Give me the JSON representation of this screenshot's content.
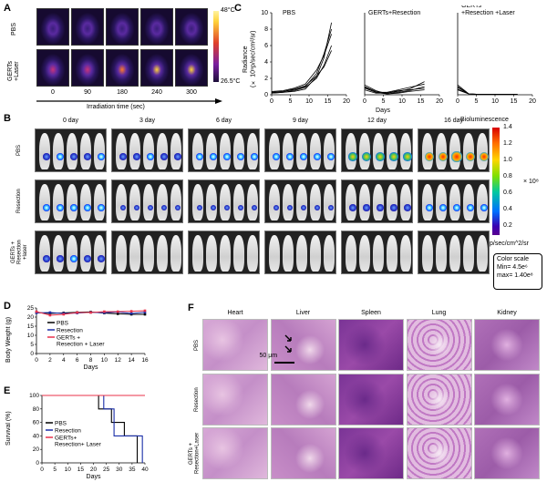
{
  "panelA": {
    "label": "A",
    "rows": [
      "PBS",
      "GERTs\n+Laser"
    ],
    "times": [
      "0",
      "90",
      "180",
      "240",
      "300"
    ],
    "xlabel": "Irradiation time (sec)",
    "scale_max": "48°C",
    "scale_min": "26.5°C",
    "colors": [
      "#1c0f3a",
      "#7a1fa0",
      "#e0402a",
      "#ffd23a"
    ]
  },
  "panelB": {
    "label": "B",
    "days": [
      "0 day",
      "3 day",
      "6 day",
      "9 day",
      "12 day",
      "16 day"
    ],
    "rows": [
      "PBS",
      "Resection",
      "GERTs +\nResection\n+laser"
    ],
    "colorbar_title": "Bioluminescence",
    "colorbar_ticks": [
      "1.4",
      "1.2",
      "1.0",
      "0.8",
      "0.6",
      "0.4",
      "0.2"
    ],
    "colorbar_exp": "× 10⁸",
    "colorbar_unit": "p/sec/cm^2/sr",
    "scale_box": [
      "Color scale",
      "Min= 4.5e⁶",
      "max= 1.40e⁸"
    ]
  },
  "panelC": {
    "label": "C",
    "ylabel": "Radiance\n(× 10⁹p/sec/cm²/sr)",
    "xlabel": "Days",
    "subtitles": [
      "PBS",
      "GERTs+Resection",
      "GERTs\n+Resection +Laser"
    ],
    "yticks": [
      "10",
      "8",
      "6",
      "4",
      "2",
      "0"
    ],
    "xticks": [
      "0",
      "5",
      "10",
      "15",
      "20"
    ]
  },
  "panelD": {
    "label": "D",
    "ylabel": "Body Weight (g)",
    "xlabel": "Days",
    "yticks": [
      "25",
      "20",
      "15",
      "10",
      "5",
      "0"
    ],
    "xticks": [
      "0",
      "2",
      "4",
      "6",
      "8",
      "10",
      "12",
      "14",
      "16"
    ],
    "legend": [
      "PBS",
      "Resection",
      "GERTs +\nResection + Laser"
    ]
  },
  "panelE": {
    "label": "E",
    "ylabel": "Survival (%)",
    "xlabel": "Days",
    "yticks": [
      "100",
      "80",
      "60",
      "40",
      "20",
      "0"
    ],
    "xticks": [
      "0",
      "5",
      "10",
      "15",
      "20",
      "25",
      "30",
      "35",
      "40"
    ],
    "legend": [
      "PBS",
      "Resection",
      "GERTs+\nResection+ Laser"
    ]
  },
  "panelF": {
    "label": "F",
    "organs": [
      "Heart",
      "Liver",
      "Spleen",
      "Lung",
      "Kidney"
    ],
    "rows": [
      "PBS",
      "Resection",
      "GERTs +\nResection+Laser"
    ],
    "scalebar": "50 μm"
  },
  "series_colors": {
    "pbs": "#000000",
    "resection": "#1a2ea8",
    "gerts": "#e8314a"
  },
  "chart_data": [
    {
      "type": "line",
      "title": "PBS",
      "xlabel": "Days",
      "ylabel": "Radiance (× 10⁹p/sec/cm²/sr)",
      "xlim": [
        0,
        20
      ],
      "ylim": [
        0,
        10
      ],
      "x": [
        0,
        3,
        6,
        9,
        12,
        14,
        16
      ],
      "series": [
        {
          "values": [
            0.2,
            0.3,
            0.4,
            0.7,
            2.2,
            4.5,
            8.8
          ]
        },
        {
          "values": [
            0.3,
            0.4,
            0.6,
            1.0,
            2.6,
            5.0,
            8.0
          ]
        },
        {
          "values": [
            0.4,
            0.5,
            0.8,
            1.3,
            3.0,
            4.8,
            7.4
          ]
        },
        {
          "values": [
            0.2,
            0.3,
            0.5,
            0.9,
            2.0,
            3.6,
            6.0
          ]
        },
        {
          "values": [
            0.3,
            0.4,
            0.7,
            1.1,
            2.3,
            3.4,
            5.4
          ]
        }
      ]
    },
    {
      "type": "line",
      "title": "GERTs+Resection",
      "xlabel": "Days",
      "xlim": [
        0,
        20
      ],
      "ylim": [
        0,
        10
      ],
      "x": [
        0,
        3,
        6,
        9,
        12,
        16
      ],
      "series": [
        {
          "values": [
            1.0,
            0.4,
            0.2,
            0.4,
            0.7,
            1.6
          ]
        },
        {
          "values": [
            0.8,
            0.3,
            0.3,
            0.6,
            0.9,
            1.3
          ]
        },
        {
          "values": [
            1.2,
            0.5,
            0.1,
            0.3,
            0.5,
            1.0
          ]
        },
        {
          "values": [
            0.6,
            0.2,
            0.2,
            0.5,
            0.6,
            0.8
          ]
        },
        {
          "values": [
            0.9,
            0.3,
            0.1,
            0.2,
            0.4,
            0.6
          ]
        }
      ]
    },
    {
      "type": "line",
      "title": "GERTs +Resection +Laser",
      "xlabel": "Days",
      "xlim": [
        0,
        20
      ],
      "ylim": [
        0,
        10
      ],
      "x": [
        0,
        3,
        6,
        9,
        12,
        16
      ],
      "series": [
        {
          "values": [
            1.2,
            0.1,
            0.05,
            0.05,
            0.05,
            0.05
          ]
        },
        {
          "values": [
            1.0,
            0.1,
            0.05,
            0.05,
            0.05,
            0.05
          ]
        },
        {
          "values": [
            0.9,
            0.1,
            0.05,
            0.05,
            0.05,
            0.05
          ]
        },
        {
          "values": [
            0.7,
            0.1,
            0.05,
            0.05,
            0.05,
            0.05
          ]
        },
        {
          "values": [
            0.6,
            0.1,
            0.05,
            0.05,
            0.05,
            0.05
          ]
        }
      ]
    },
    {
      "type": "line",
      "xlabel": "Days",
      "ylabel": "Body Weight (g)",
      "xlim": [
        0,
        16
      ],
      "ylim": [
        0,
        25
      ],
      "x": [
        0,
        2,
        4,
        6,
        8,
        10,
        12,
        14,
        16
      ],
      "series": [
        {
          "name": "PBS",
          "values": [
            22.5,
            22.0,
            22.3,
            22.6,
            22.8,
            22.2,
            21.8,
            21.5,
            21.5
          ]
        },
        {
          "name": "Resection",
          "values": [
            22.3,
            22.5,
            22.0,
            22.2,
            22.6,
            22.4,
            22.8,
            22.0,
            22.6
          ]
        },
        {
          "name": "GERTs + Resection + Laser",
          "values": [
            23.0,
            21.0,
            21.5,
            22.5,
            22.5,
            23.0,
            23.0,
            23.2,
            23.5
          ]
        }
      ]
    },
    {
      "type": "line",
      "xlabel": "Days",
      "ylabel": "Survival (%)",
      "xlim": [
        0,
        40
      ],
      "ylim": [
        0,
        100
      ],
      "series": [
        {
          "name": "PBS",
          "x": [
            0,
            22,
            22,
            27,
            27,
            32,
            32,
            37,
            37
          ],
          "values": [
            100,
            100,
            80,
            80,
            60,
            60,
            40,
            40,
            0
          ]
        },
        {
          "name": "Resection",
          "x": [
            0,
            24,
            24,
            28,
            28,
            35,
            35,
            39,
            39
          ],
          "values": [
            100,
            100,
            80,
            80,
            40,
            40,
            40,
            40,
            0
          ]
        },
        {
          "name": "GERTs+ Resection+ Laser",
          "x": [
            0,
            40
          ],
          "values": [
            100,
            100
          ]
        }
      ]
    }
  ]
}
